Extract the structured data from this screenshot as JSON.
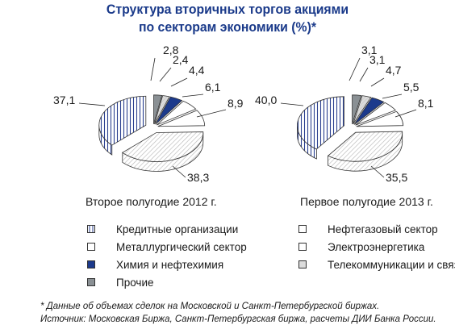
{
  "chart_data": {
    "type": "pie",
    "title_line1": "Структура вторичных торгов акциями",
    "title_line2": "по секторам экономики (%)*",
    "categories": [
      "Кредитные организации",
      "Нефтегазовый сектор",
      "Металлургический сектор",
      "Электроэнергетика",
      "Химия и нефтехимия",
      "Телекоммуникации и связь",
      "Прочие"
    ],
    "charts": [
      {
        "caption": "Второе полугодие 2012 г.",
        "slices": [
          {
            "category": "Прочие",
            "value": 2.8,
            "label": "2,8"
          },
          {
            "category": "Телекоммуникации и связь",
            "value": 2.4,
            "label": "2,4"
          },
          {
            "category": "Химия и нефтехимия",
            "value": 4.4,
            "label": "4,4"
          },
          {
            "category": "Электроэнергетика",
            "value": 6.1,
            "label": "6,1"
          },
          {
            "category": "Металлургический сектор",
            "value": 8.9,
            "label": "8,9"
          },
          {
            "category": "Нефтегазовый сектор",
            "value": 38.3,
            "label": "38,3"
          },
          {
            "category": "Кредитные организации",
            "value": 37.1,
            "label": "37,1"
          }
        ]
      },
      {
        "caption": "Первое полугодие 2013 г.",
        "slices": [
          {
            "category": "Прочие",
            "value": 3.1,
            "label": "3,1"
          },
          {
            "category": "Телекоммуникации и связь",
            "value": 3.1,
            "label": "3,1"
          },
          {
            "category": "Химия и нефтехимия",
            "value": 4.7,
            "label": "4,7"
          },
          {
            "category": "Электроэнергетика",
            "value": 5.5,
            "label": "5,5"
          },
          {
            "category": "Металлургический сектор",
            "value": 8.1,
            "label": "8,1"
          },
          {
            "category": "Нефтегазовый сектор",
            "value": 35.5,
            "label": "35,5"
          },
          {
            "category": "Кредитные организации",
            "value": 40.0,
            "label": "40,0"
          }
        ]
      }
    ],
    "legend": {
      "placement": "bottom",
      "items": [
        {
          "label": "Кредитные организации",
          "style": "vertical-hatch"
        },
        {
          "label": "Нефтегазовый сектор",
          "style": "white"
        },
        {
          "label": "Металлургический сектор",
          "style": "white"
        },
        {
          "label": "Электроэнергетика",
          "style": "white"
        },
        {
          "label": "Химия и нефтехимия",
          "style": "dark-blue"
        },
        {
          "label": "Телекоммуникации и связь",
          "style": "light-gray"
        },
        {
          "label": "Прочие",
          "style": "gray"
        }
      ]
    }
  },
  "colors": {
    "title": "#1a3a8a",
    "dark_blue": "#1c3a8c",
    "gray": "#8a9094",
    "light_gray": "#dcdcdc",
    "hatch": "#2a3f8f",
    "outline": "#333333"
  },
  "footnote1": "* Данные об объемах сделок на Московской и Санкт-Петербургской биржах.",
  "footnote2": "Источник: Московская Биржа, Санкт-Петербургская биржа, расчеты ДИИ Банка России."
}
